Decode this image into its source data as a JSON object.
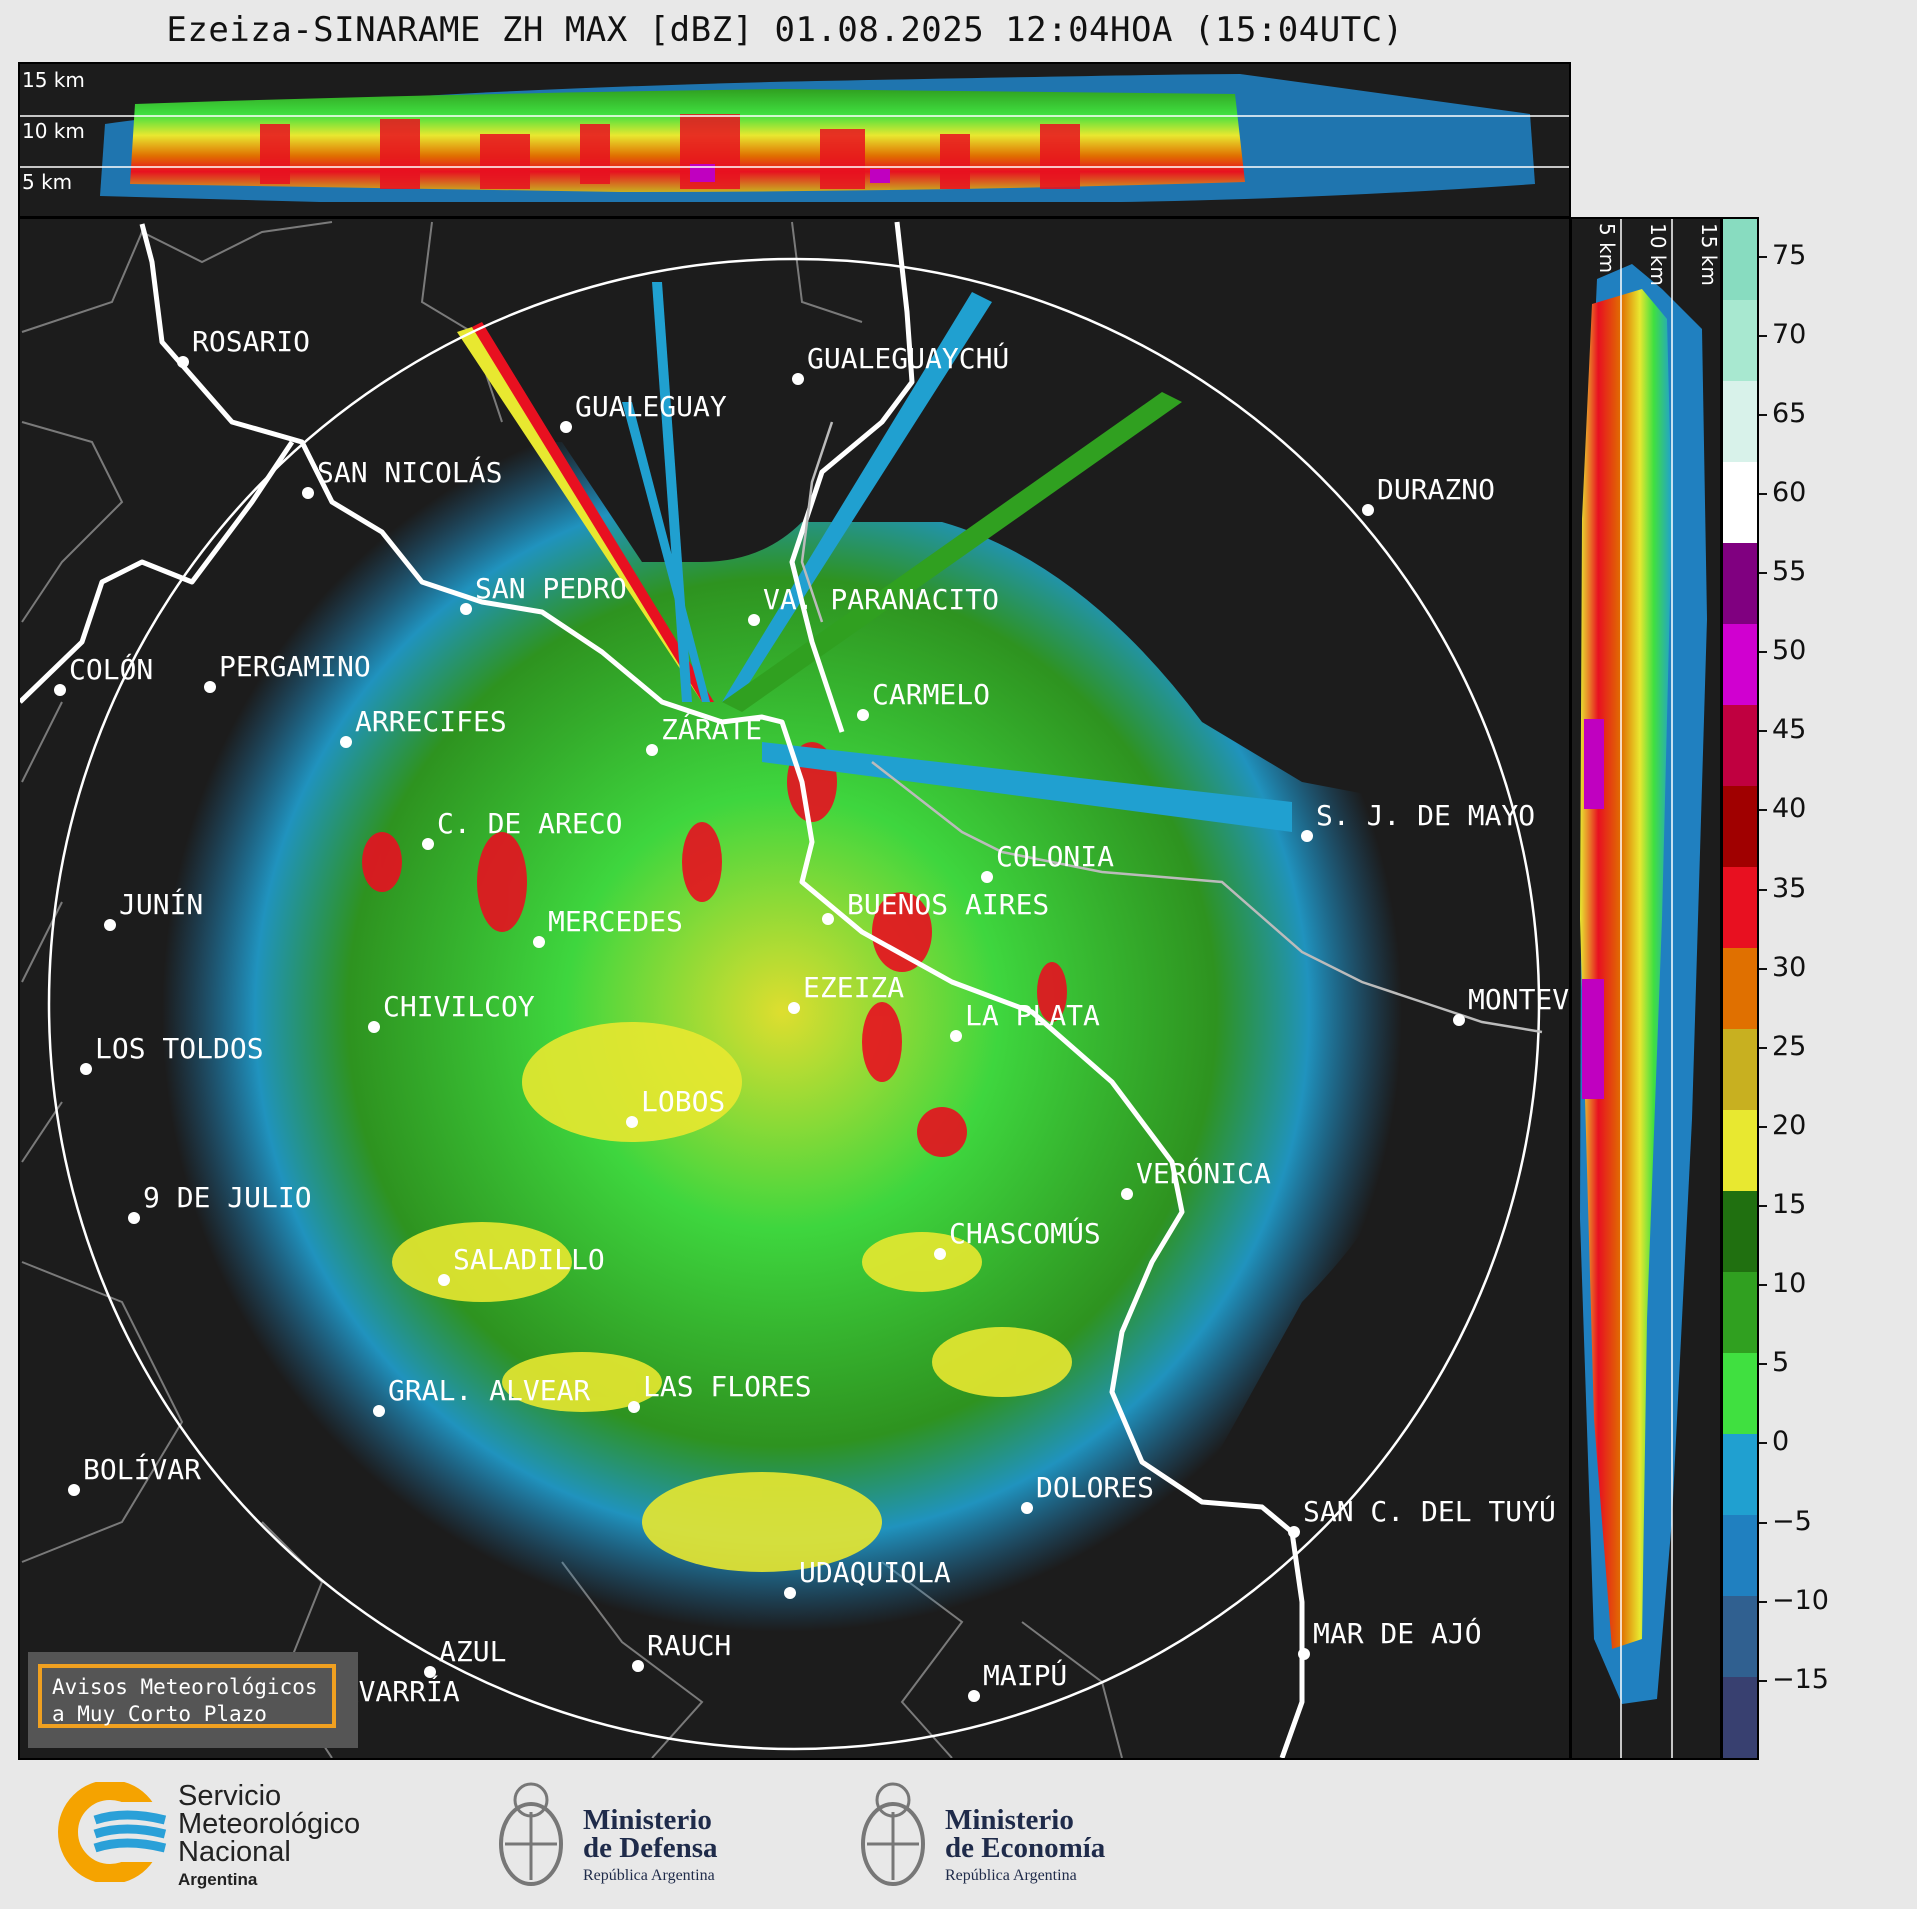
{
  "title": "Ezeiza-SINARAME ZH MAX [dBZ] 01.08.2025 12:04HOA (15:04UTC)",
  "top_panel": {
    "heights": [
      "15 km",
      "10 km",
      "5 km"
    ]
  },
  "side_panel": {
    "heights": [
      "5 km",
      "10 km",
      "15 km"
    ]
  },
  "colorbar": {
    "unit": "dBZ",
    "ticks": [
      "75",
      "70",
      "65",
      "60",
      "55",
      "50",
      "45",
      "40",
      "35",
      "30",
      "25",
      "20",
      "15",
      "10",
      "5",
      "0",
      "−5",
      "−10",
      "−15"
    ],
    "colors": [
      "#88dcc0",
      "#a8e8d0",
      "#d8f2ea",
      "#ffffff",
      "#800080",
      "#d000d0",
      "#c00040",
      "#a00000",
      "#e81020",
      "#e07000",
      "#c8b020",
      "#e8e830",
      "#207010",
      "#30a020",
      "#40e040",
      "#20a0d0",
      "#2080c0",
      "#306090",
      "#384070"
    ]
  },
  "cities": [
    {
      "name": "ROSARIO"
    },
    {
      "name": "GUALEGUAYCHÚ"
    },
    {
      "name": "GUALEGUAY"
    },
    {
      "name": "SAN NICOLÁS"
    },
    {
      "name": "DURAZNO"
    },
    {
      "name": "SAN PEDRO"
    },
    {
      "name": "VA. PARANACITO"
    },
    {
      "name": "COLÓN"
    },
    {
      "name": "PERGAMINO"
    },
    {
      "name": "CARMELO"
    },
    {
      "name": "ZÁRATE"
    },
    {
      "name": "ARRECIFES"
    },
    {
      "name": "S. J. DE MAYO"
    },
    {
      "name": "C. DE ARECO"
    },
    {
      "name": "COLONIA"
    },
    {
      "name": "JUNÍN"
    },
    {
      "name": "BUENOS AIRES"
    },
    {
      "name": "MERCEDES"
    },
    {
      "name": "MONTEVIDEO"
    },
    {
      "name": "EZEIZA"
    },
    {
      "name": "CHIVILCOY"
    },
    {
      "name": "LA PLATA"
    },
    {
      "name": "LOS TOLDOS"
    },
    {
      "name": "LOBOS"
    },
    {
      "name": "VERÓNICA"
    },
    {
      "name": "9 DE JULIO"
    },
    {
      "name": "CHASCOMÚS"
    },
    {
      "name": "SALADILLO"
    },
    {
      "name": "GRAL. ALVEAR"
    },
    {
      "name": "LAS FLORES"
    },
    {
      "name": "BOLÍVAR"
    },
    {
      "name": "DOLORES"
    },
    {
      "name": "SAN C. DEL TUYÚ"
    },
    {
      "name": "UDAQUIOLA"
    },
    {
      "name": "MAR DE AJÓ"
    },
    {
      "name": "AZUL"
    },
    {
      "name": "RAUCH"
    },
    {
      "name": "OLAVARRÍA"
    },
    {
      "name": "MAIPÚ"
    }
  ],
  "warning_box": {
    "line1": "Avisos Meteorológicos",
    "line2": "a Muy Corto Plazo"
  },
  "logos": {
    "smn": {
      "line1": "Servicio",
      "line2": "Meteorológico",
      "line3": "Nacional",
      "line4": "Argentina"
    },
    "defensa": {
      "line1": "Ministerio",
      "line2": "de Defensa",
      "line3": "República Argentina"
    },
    "economia": {
      "line1": "Ministerio",
      "line2": "de Economía",
      "line3": "República Argentina"
    }
  }
}
